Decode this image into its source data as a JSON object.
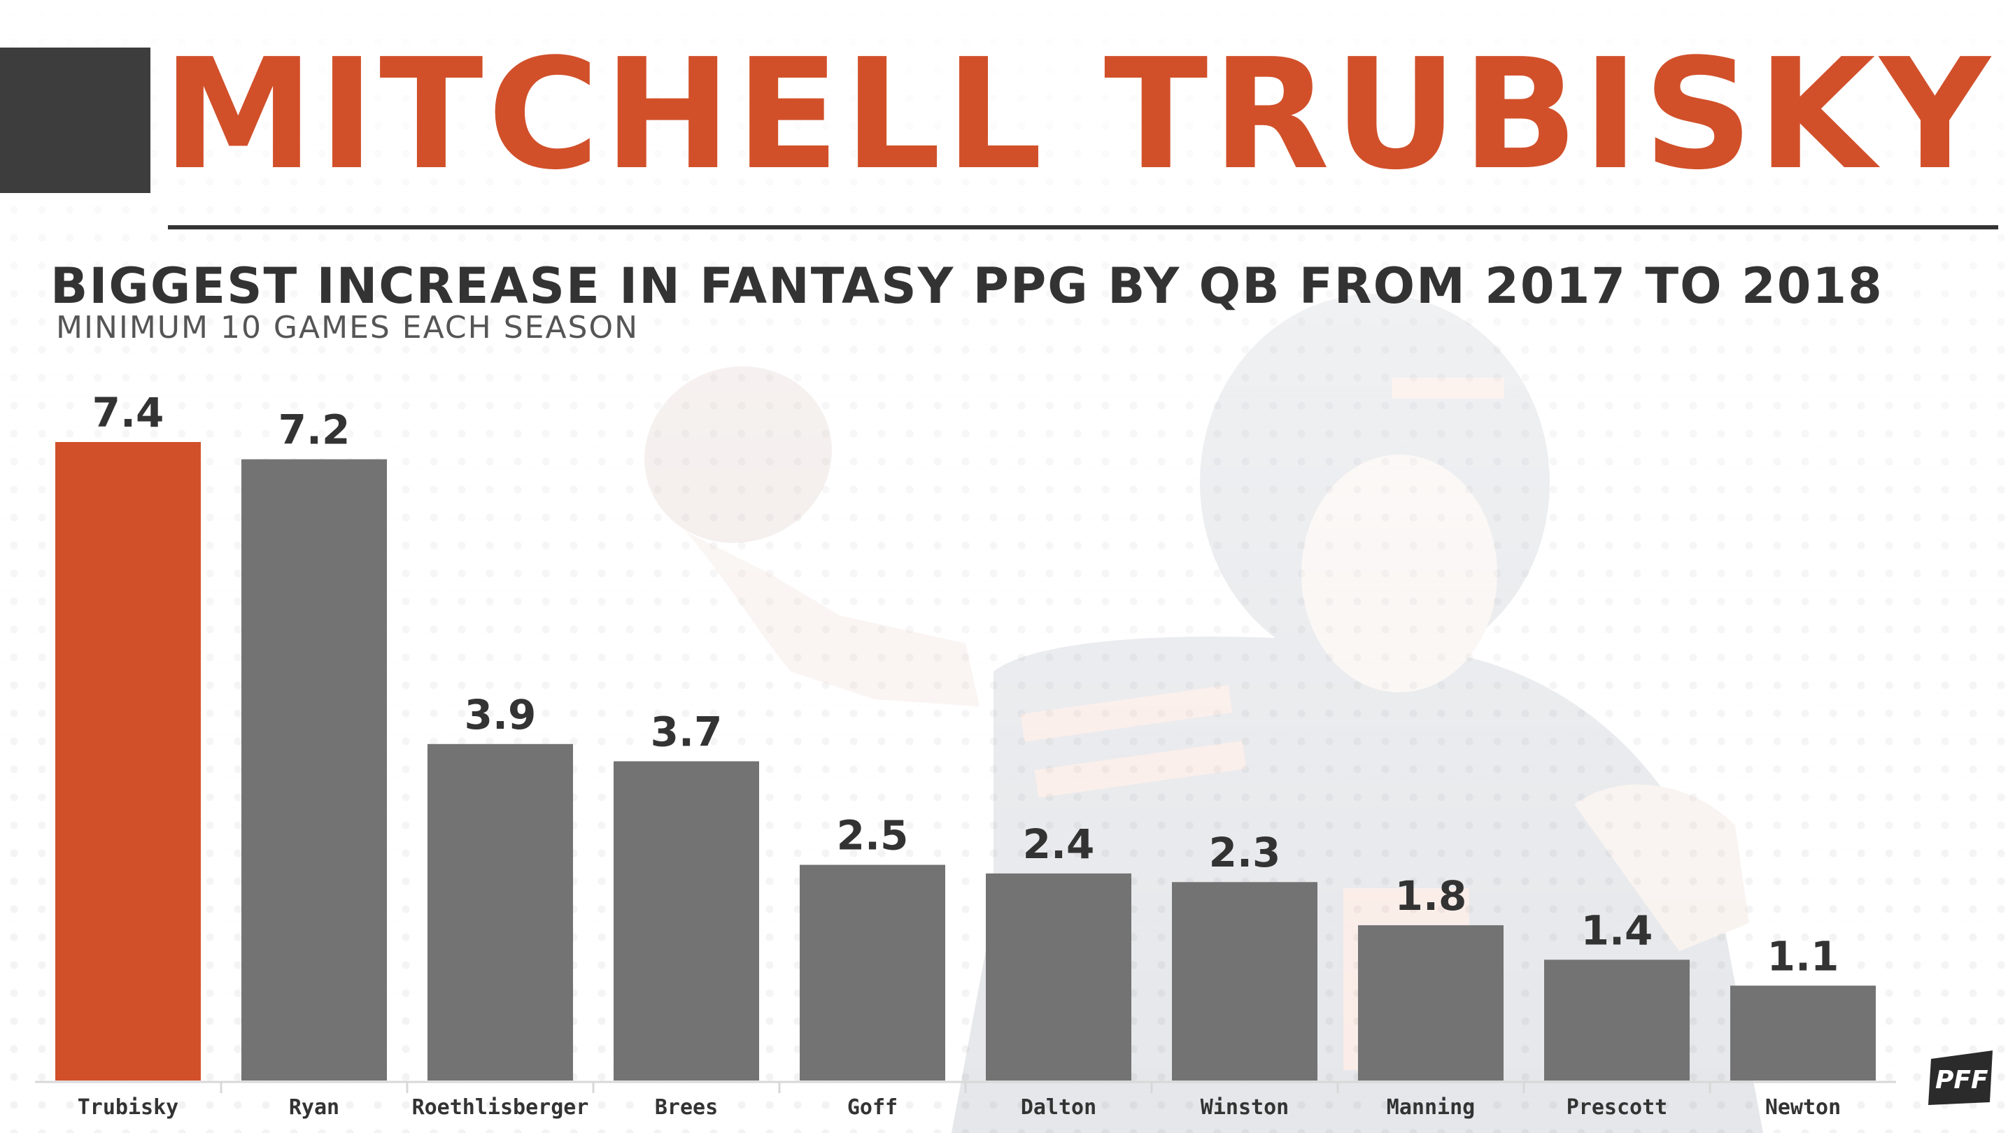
{
  "header": {
    "player_name": "MITCHELL TRUBISKY"
  },
  "chart_data": {
    "type": "bar",
    "title": "BIGGEST INCREASE IN FANTASY PPG BY QB FROM 2017 TO 2018",
    "subtitle": "MINIMUM 10 GAMES EACH SEASON",
    "categories": [
      "Trubisky",
      "Ryan",
      "Roethlisberger",
      "Brees",
      "Goff",
      "Dalton",
      "Winston",
      "Manning",
      "Prescott",
      "Newton"
    ],
    "values": [
      7.4,
      7.2,
      3.9,
      3.7,
      2.5,
      2.4,
      2.3,
      1.8,
      1.4,
      1.1
    ],
    "value_labels": [
      "7.4",
      "7.2",
      "3.9",
      "3.7",
      "2.5",
      "2.4",
      "2.3",
      "1.8",
      "1.4",
      "1.1"
    ],
    "highlight_index": 0,
    "ylim": [
      0,
      7.4
    ],
    "grid": false,
    "xlabel": "",
    "ylabel": ""
  },
  "colors": {
    "highlight": "#d1502a",
    "bar": "#737373",
    "text": "#333333",
    "axis": "#d8d8d8"
  },
  "logo": {
    "icon": "pff-logo",
    "text": "PFF"
  }
}
